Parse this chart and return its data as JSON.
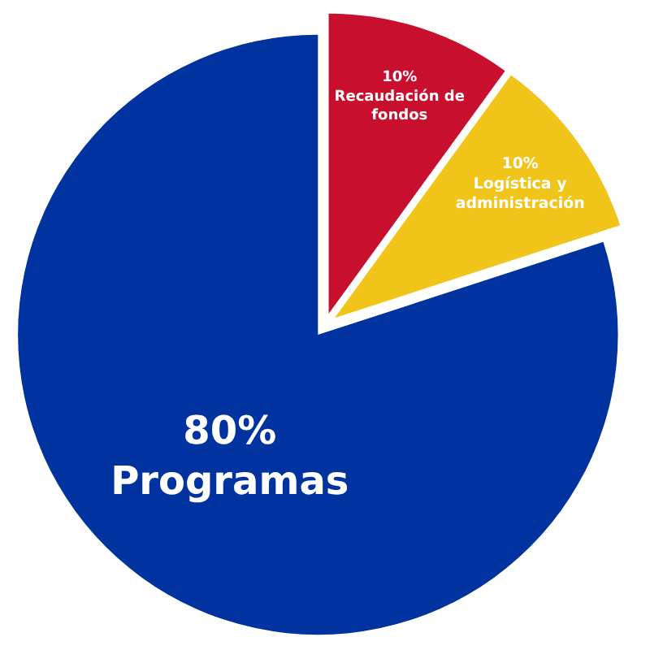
{
  "chart_data": {
    "type": "pie",
    "categories": [
      "Recaudación de fondos",
      "Logística y administración",
      "Programas"
    ],
    "values": [
      10,
      10,
      80
    ],
    "colors": [
      "#c8102e",
      "#f0c419",
      "#0033a0"
    ],
    "value_labels": [
      "10%",
      "10%",
      "80%"
    ],
    "legend": false
  }
}
